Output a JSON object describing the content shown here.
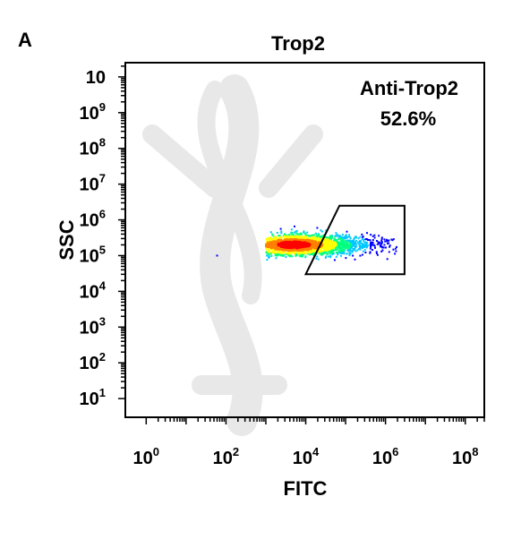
{
  "panel_letter": "A",
  "colors": {
    "axis": "#000000",
    "gate": "#000000",
    "watermark": "#e8e8e8",
    "density": [
      "#0000ff",
      "#00c8ff",
      "#00ff80",
      "#ffff00",
      "#ff8000",
      "#ff0000"
    ]
  },
  "chart_data": {
    "type": "scatter",
    "subtype": "flow-cytometry-density-dot-plot",
    "title": "Trop2",
    "xlabel": "FITC",
    "ylabel": "SSC",
    "x_scale": "log",
    "y_scale": "log",
    "xlim": [
      0.3,
      300000000
    ],
    "ylim": [
      3,
      25000000000
    ],
    "x_ticks": [
      {
        "value": 1,
        "base": "10",
        "exp": "0"
      },
      {
        "value": 100,
        "base": "10",
        "exp": "2"
      },
      {
        "value": 10000,
        "base": "10",
        "exp": "4"
      },
      {
        "value": 1000000,
        "base": "10",
        "exp": "6"
      },
      {
        "value": 100000000,
        "base": "10",
        "exp": "8"
      }
    ],
    "y_ticks": [
      {
        "value": 10,
        "base": "10",
        "exp": "1"
      },
      {
        "value": 100,
        "base": "10",
        "exp": "2"
      },
      {
        "value": 1000,
        "base": "10",
        "exp": "3"
      },
      {
        "value": 10000,
        "base": "10",
        "exp": "4"
      },
      {
        "value": 100000,
        "base": "10",
        "exp": "5"
      },
      {
        "value": 1000000,
        "base": "10",
        "exp": "6"
      },
      {
        "value": 10000000,
        "base": "10",
        "exp": "7"
      },
      {
        "value": 100000000,
        "base": "10",
        "exp": "8"
      },
      {
        "value": 1000000000,
        "base": "10",
        "exp": "9"
      },
      {
        "value": 10000000000,
        "base": "10",
        "exp": ""
      }
    ],
    "population": {
      "center": [
        5000,
        200000
      ],
      "spread_log10": [
        1.0,
        0.3
      ],
      "x_range": [
        1000,
        2000000
      ],
      "y_range": [
        70000,
        1000000
      ],
      "stray_event": [
        60,
        100000
      ]
    },
    "gate": {
      "name": "Anti-Trop2",
      "percent": "52.6%",
      "vertices": [
        [
          10000,
          30000
        ],
        [
          70000,
          2500000
        ],
        [
          3000000,
          2500000
        ],
        [
          3000000,
          30000
        ]
      ]
    },
    "grid": false,
    "legend": "none"
  }
}
